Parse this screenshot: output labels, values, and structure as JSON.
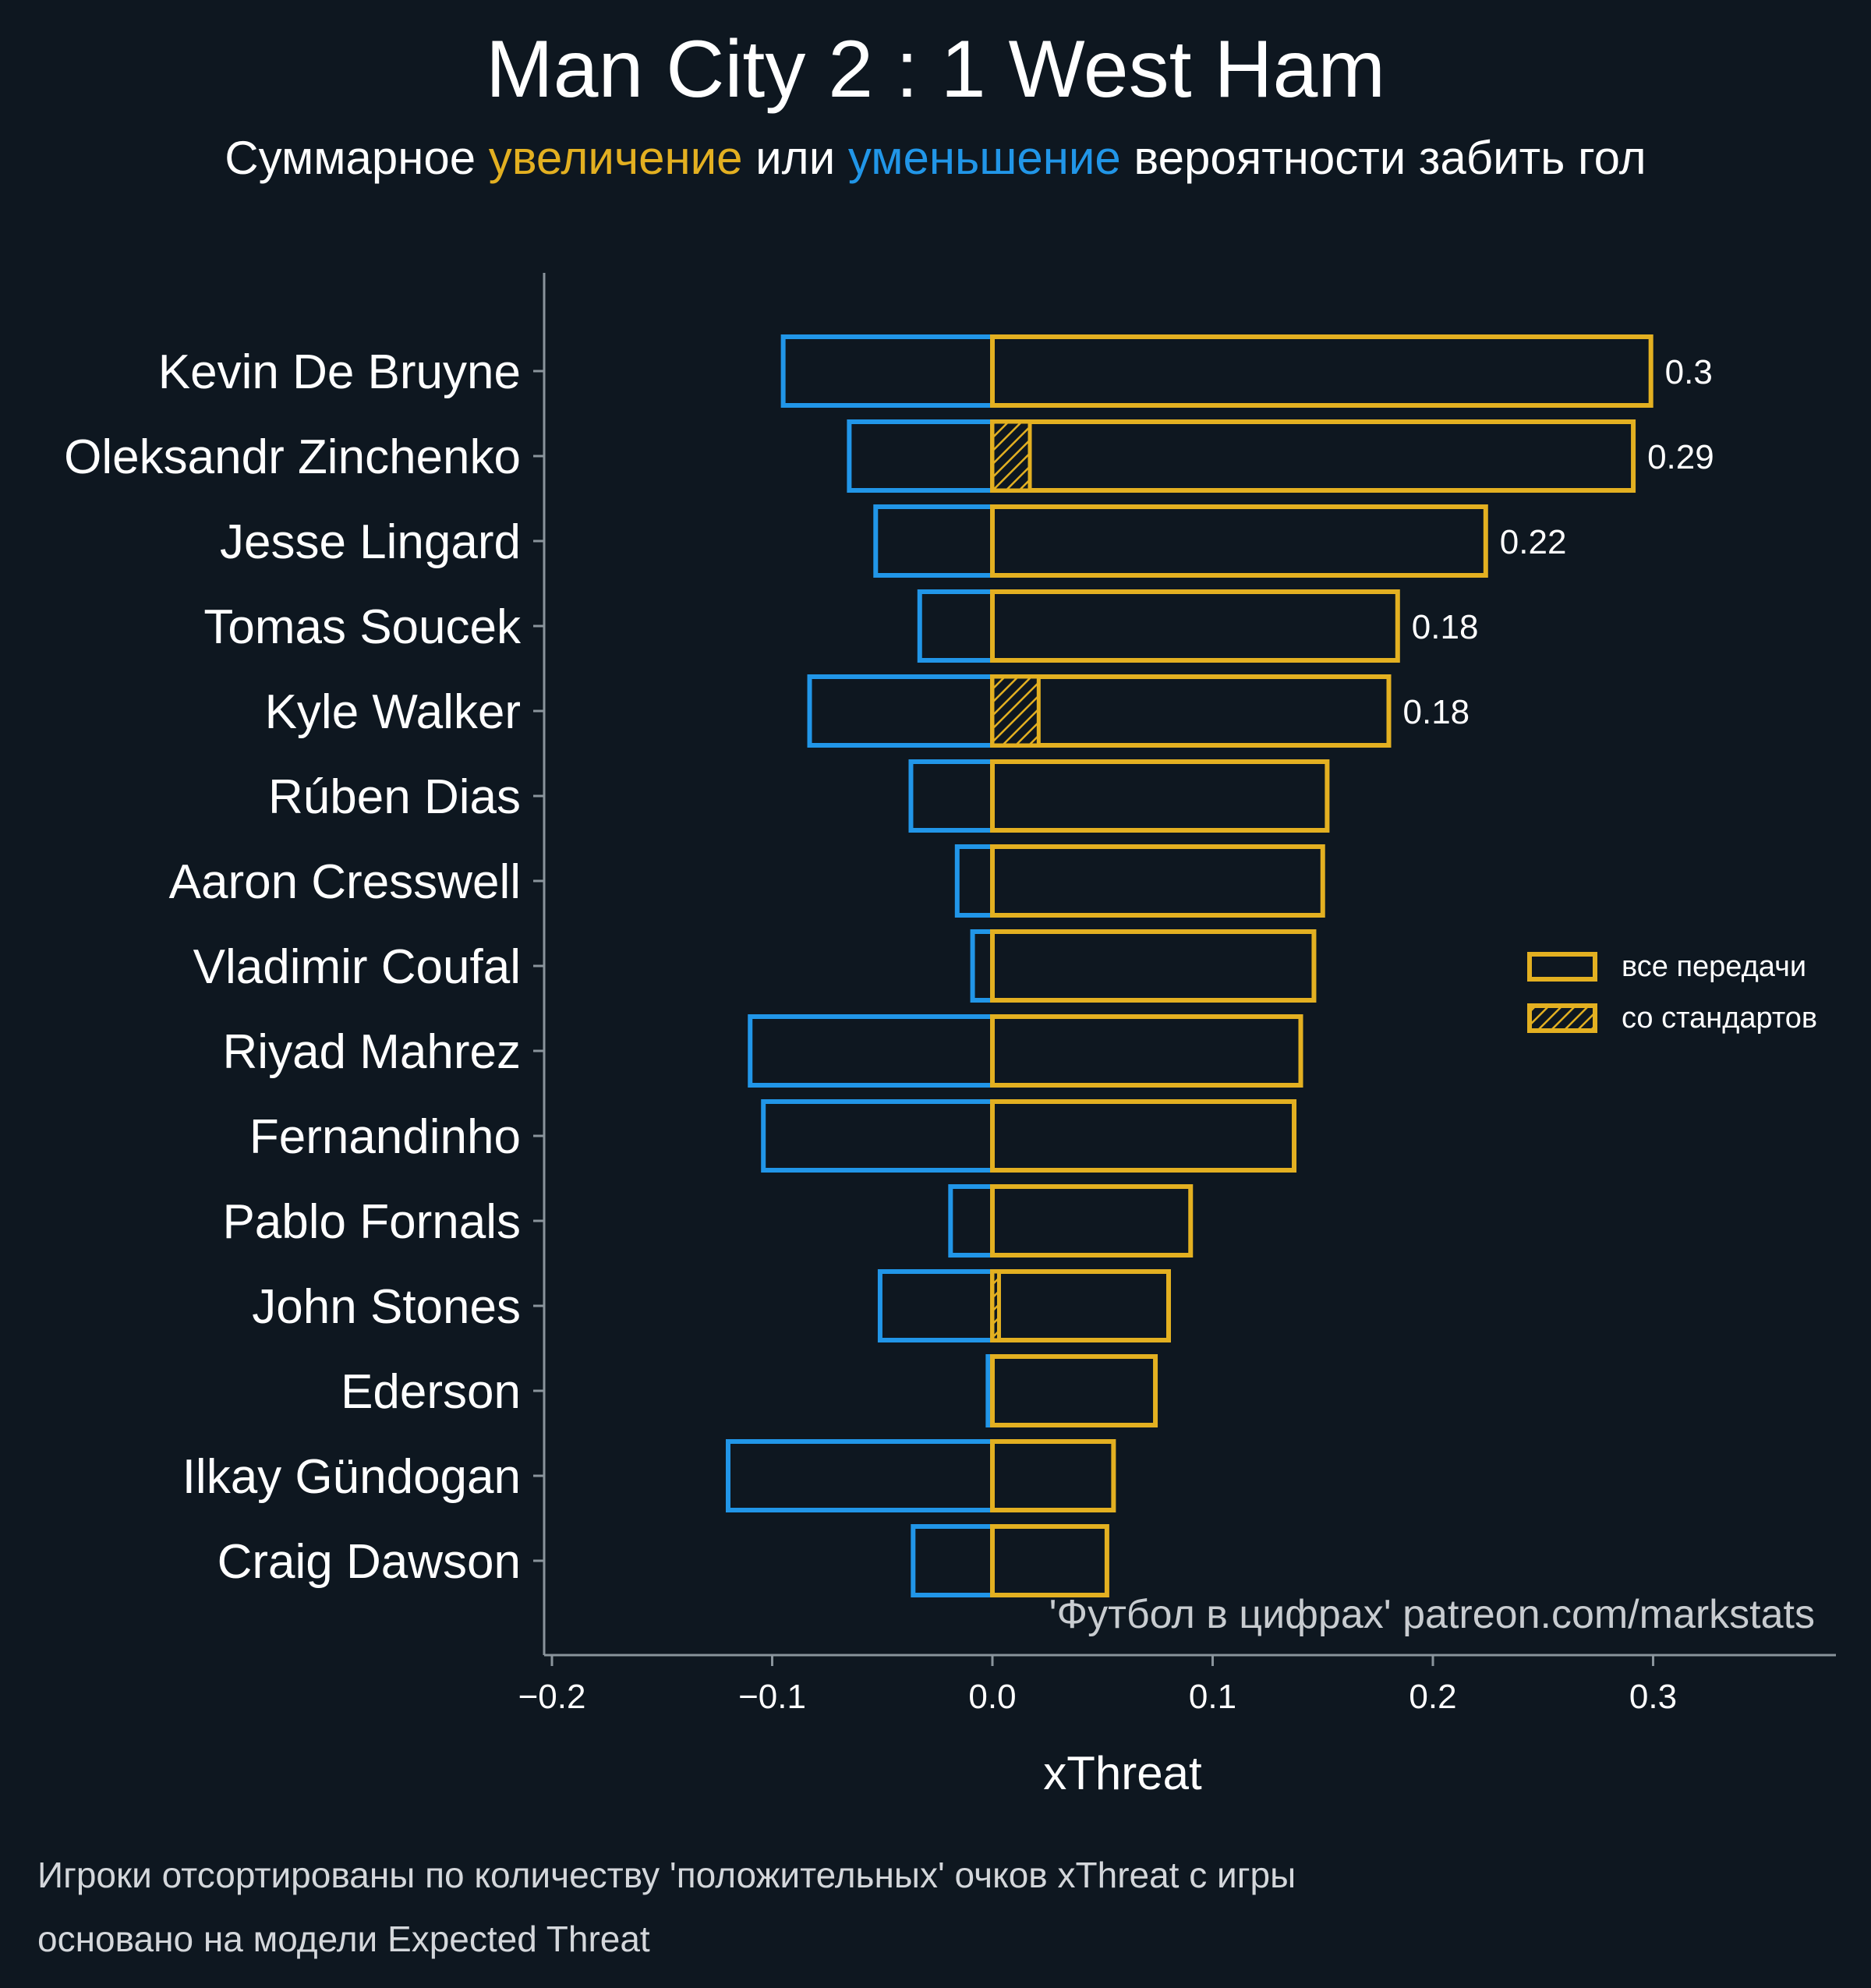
{
  "title": "Man City 2 : 1 West Ham",
  "subtitle": {
    "part1": "Суммарное ",
    "increase": "увеличение",
    "part2": " или ",
    "decrease": "уменьшение",
    "part3": " вероятности забить гол"
  },
  "colors": {
    "background": "#0e1720",
    "positive": "#e3b021",
    "negative": "#2196e8",
    "axis": "#8a949c",
    "text": "#ffffff"
  },
  "chart_data": {
    "type": "bar",
    "orientation": "horizontal",
    "xlabel": "xThreat",
    "xlim": [
      -0.2,
      0.38
    ],
    "xticks": [
      -0.2,
      -0.1,
      0.0,
      0.1,
      0.2,
      0.3
    ],
    "xtick_labels": [
      "−0.2",
      "−0.1",
      "0.0",
      "0.1",
      "0.2",
      "0.3"
    ],
    "categories": [
      "Kevin De Bruyne",
      "Oleksandr Zinchenko",
      "Jesse Lingard",
      "Tomas Soucek",
      "Kyle Walker",
      "Rúben Dias",
      "Aaron Cresswell",
      "Vladimir Coufal",
      "Riyad Mahrez",
      "Fernandinho",
      "Pablo Fornals",
      "John Stones",
      "Ederson",
      "Ilkay Gündogan",
      "Craig Dawson"
    ],
    "series": [
      {
        "name": "все передачи",
        "values": [
          0.299,
          0.291,
          0.224,
          0.184,
          0.18,
          0.152,
          0.15,
          0.146,
          0.14,
          0.137,
          0.09,
          0.08,
          0.074,
          0.055,
          0.052
        ]
      },
      {
        "name": "со стандартов",
        "values": [
          0,
          0.017,
          0,
          0,
          0.021,
          0,
          0,
          0,
          0,
          0,
          0,
          0.003,
          0,
          0,
          0
        ]
      },
      {
        "values": [
          -0.095,
          -0.065,
          -0.053,
          -0.033,
          -0.083,
          -0.037,
          -0.016,
          -0.009,
          -0.11,
          -0.104,
          -0.019,
          -0.051,
          -0.002,
          -0.12,
          -0.036
        ]
      }
    ],
    "data_labels": [
      "0.3",
      "0.29",
      "0.22",
      "0.18",
      "0.18",
      "",
      "",
      "",
      "",
      "",
      "",
      "",
      "",
      "",
      ""
    ],
    "legend": {
      "position": "right",
      "items": [
        "все передачи",
        "со стандартов"
      ]
    },
    "grid": false,
    "watermark": "'Футбол в цифрах' patreon.com/markstats"
  },
  "footnotes": [
    "Игроки отсортированы по количеству 'положительных' очков xThreat с игры",
    "основано на модели Expected Threat"
  ]
}
